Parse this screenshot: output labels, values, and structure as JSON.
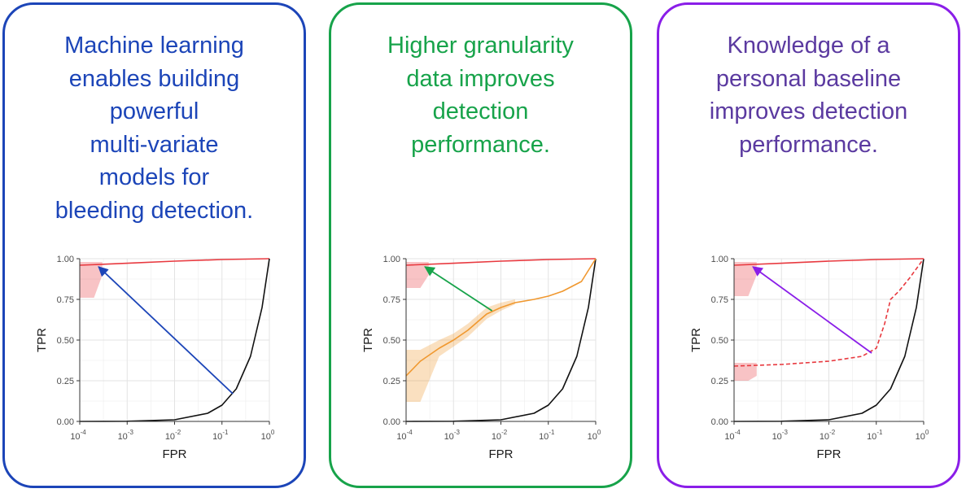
{
  "colors": {
    "blue": "#1c45b8",
    "green": "#17a34a",
    "purple": "#8a1ee8",
    "purple_text": "#5b3aa0",
    "red": "#e8393f",
    "orange": "#f0982f",
    "black": "#111111"
  },
  "panels": [
    {
      "border_color": "#1c45b8",
      "text_color": "#1c45b8",
      "headline": [
        "Machine learning",
        "enables building",
        "powerful",
        "multi-variate",
        "models for",
        "bleeding detection."
      ]
    },
    {
      "border_color": "#17a34a",
      "text_color": "#17a34a",
      "headline": [
        "Higher granularity",
        "data improves",
        "detection",
        "performance."
      ]
    },
    {
      "border_color": "#8a1ee8",
      "text_color": "#5b3aa0",
      "headline": [
        "Knowledge of a",
        "personal baseline",
        "improves detection",
        "performance."
      ]
    }
  ],
  "chart_data": [
    {
      "type": "line",
      "xlabel": "FPR",
      "ylabel": "TPR",
      "x_scale": "log",
      "xlim": [
        0.0001,
        1
      ],
      "ylim": [
        0,
        1
      ],
      "x_ticks": [
        {
          "base": "10",
          "exp": "-4"
        },
        {
          "base": "10",
          "exp": "-3"
        },
        {
          "base": "10",
          "exp": "-2"
        },
        {
          "base": "10",
          "exp": "-1"
        },
        {
          "base": "10",
          "exp": "0"
        }
      ],
      "y_ticks": [
        "0.00",
        "0.25",
        "0.50",
        "0.75",
        "1.00"
      ],
      "grid": true,
      "series": [
        {
          "color": "#e8393f",
          "style": "solid",
          "x": [
            0.0001,
            0.001,
            0.01,
            0.1,
            1
          ],
          "y": [
            0.96,
            0.972,
            0.985,
            0.995,
            1.0
          ]
        },
        {
          "color": "#e8393f",
          "style": "band",
          "x": [
            0.0001,
            0.0002,
            0.0003
          ],
          "y_low": [
            0.76,
            0.76,
            0.9
          ],
          "y_high": [
            0.98,
            0.98,
            0.98
          ]
        },
        {
          "color": "#111111",
          "style": "solid",
          "x": [
            0.0001,
            0.001,
            0.01,
            0.05,
            0.1,
            0.2,
            0.4,
            0.7,
            1
          ],
          "y": [
            0.0001,
            0.001,
            0.01,
            0.05,
            0.1,
            0.2,
            0.4,
            0.7,
            1.0
          ]
        }
      ],
      "arrow": {
        "color": "#1c45b8",
        "from": [
          0.17,
          0.17
        ],
        "to": [
          0.00025,
          0.95
        ]
      }
    },
    {
      "type": "line",
      "xlabel": "FPR",
      "ylabel": "TPR",
      "x_scale": "log",
      "xlim": [
        0.0001,
        1
      ],
      "ylim": [
        0,
        1
      ],
      "x_ticks": [
        {
          "base": "10",
          "exp": "-4"
        },
        {
          "base": "10",
          "exp": "-3"
        },
        {
          "base": "10",
          "exp": "-2"
        },
        {
          "base": "10",
          "exp": "-1"
        },
        {
          "base": "10",
          "exp": "0"
        }
      ],
      "y_ticks": [
        "0.00",
        "0.25",
        "0.50",
        "0.75",
        "1.00"
      ],
      "grid": true,
      "series": [
        {
          "color": "#e8393f",
          "style": "solid",
          "x": [
            0.0001,
            0.001,
            0.01,
            0.1,
            1
          ],
          "y": [
            0.96,
            0.972,
            0.985,
            0.995,
            1.0
          ]
        },
        {
          "color": "#e8393f",
          "style": "band",
          "x": [
            0.0001,
            0.0002,
            0.0003
          ],
          "y_low": [
            0.82,
            0.82,
            0.9
          ],
          "y_high": [
            0.98,
            0.98,
            0.98
          ]
        },
        {
          "color": "#111111",
          "style": "solid",
          "x": [
            0.0001,
            0.001,
            0.01,
            0.05,
            0.1,
            0.2,
            0.4,
            0.7,
            1
          ],
          "y": [
            0.0001,
            0.001,
            0.01,
            0.05,
            0.1,
            0.2,
            0.4,
            0.7,
            1.0
          ]
        },
        {
          "color": "#f0982f",
          "style": "solid",
          "x": [
            0.0001,
            0.0002,
            0.0005,
            0.001,
            0.002,
            0.005,
            0.01,
            0.02,
            0.05,
            0.1,
            0.2,
            0.5,
            1
          ],
          "y": [
            0.28,
            0.37,
            0.45,
            0.5,
            0.56,
            0.66,
            0.7,
            0.73,
            0.75,
            0.77,
            0.8,
            0.86,
            1.0
          ]
        },
        {
          "color": "#f0982f",
          "style": "band",
          "x": [
            0.0001,
            0.0002,
            0.0005,
            0.001,
            0.002,
            0.005,
            0.01,
            0.02
          ],
          "y_low": [
            0.12,
            0.12,
            0.4,
            0.46,
            0.52,
            0.63,
            0.68,
            0.72
          ],
          "y_high": [
            0.44,
            0.44,
            0.5,
            0.54,
            0.6,
            0.7,
            0.73,
            0.75
          ]
        }
      ],
      "arrow": {
        "color": "#17a34a",
        "from": [
          0.0065,
          0.68
        ],
        "to": [
          0.00025,
          0.95
        ]
      }
    },
    {
      "type": "line",
      "xlabel": "FPR",
      "ylabel": "TPR",
      "x_scale": "log",
      "xlim": [
        0.0001,
        1
      ],
      "ylim": [
        0,
        1
      ],
      "x_ticks": [
        {
          "base": "10",
          "exp": "-4"
        },
        {
          "base": "10",
          "exp": "-3"
        },
        {
          "base": "10",
          "exp": "-2"
        },
        {
          "base": "10",
          "exp": "-1"
        },
        {
          "base": "10",
          "exp": "0"
        }
      ],
      "y_ticks": [
        "0.00",
        "0.25",
        "0.50",
        "0.75",
        "1.00"
      ],
      "grid": true,
      "series": [
        {
          "color": "#e8393f",
          "style": "solid",
          "x": [
            0.0001,
            0.001,
            0.01,
            0.1,
            1
          ],
          "y": [
            0.96,
            0.972,
            0.985,
            0.995,
            1.0
          ]
        },
        {
          "color": "#e8393f",
          "style": "band",
          "x": [
            0.0001,
            0.0002,
            0.0003
          ],
          "y_low": [
            0.77,
            0.77,
            0.9
          ],
          "y_high": [
            0.98,
            0.98,
            0.98
          ]
        },
        {
          "color": "#111111",
          "style": "solid",
          "x": [
            0.0001,
            0.001,
            0.01,
            0.05,
            0.1,
            0.2,
            0.4,
            0.7,
            1
          ],
          "y": [
            0.0001,
            0.001,
            0.01,
            0.05,
            0.1,
            0.2,
            0.4,
            0.7,
            1.0
          ]
        },
        {
          "color": "#e8393f",
          "style": "dashed",
          "x": [
            0.0001,
            0.001,
            0.01,
            0.05,
            0.1,
            0.15,
            0.2,
            0.3,
            0.5,
            1
          ],
          "y": [
            0.34,
            0.35,
            0.37,
            0.4,
            0.45,
            0.6,
            0.75,
            0.8,
            0.88,
            1.0
          ]
        },
        {
          "color": "#e8393f",
          "style": "band",
          "x": [
            0.0001,
            0.0002,
            0.0003
          ],
          "y_low": [
            0.25,
            0.25,
            0.28
          ],
          "y_high": [
            0.36,
            0.36,
            0.36
          ]
        }
      ],
      "arrow": {
        "color": "#8a1ee8",
        "from": [
          0.08,
          0.42
        ],
        "to": [
          0.00025,
          0.95
        ]
      }
    }
  ]
}
